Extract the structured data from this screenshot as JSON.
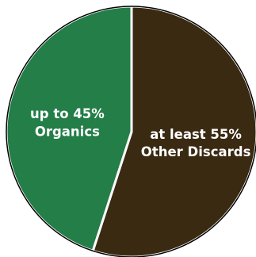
{
  "chart_data": {
    "type": "pie",
    "title": "",
    "start_angle_deg": 0,
    "direction": "clockwise",
    "slices": [
      {
        "name": "Other Discards",
        "value": 55,
        "color": "#3a2a12",
        "label_lines": [
          "at least 55%",
          "Other Discards"
        ]
      },
      {
        "name": "Organics",
        "value": 45,
        "color": "#237e47",
        "label_lines": [
          "up to 45%",
          "Organics"
        ]
      }
    ],
    "slice_outline_color": "#ffffff",
    "pie_outline_color": "#000000"
  }
}
